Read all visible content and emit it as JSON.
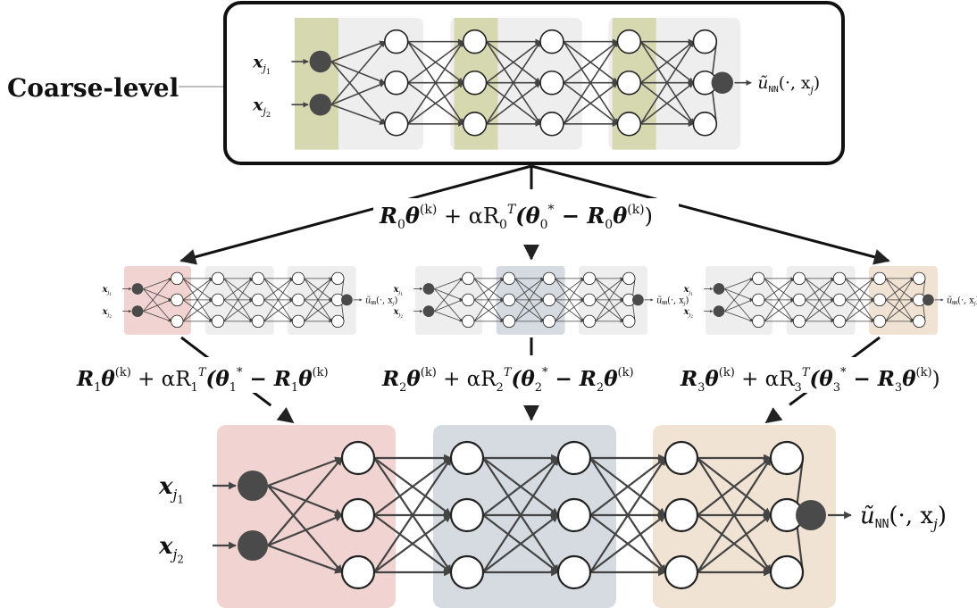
{
  "coarse_label": "Coarse-level",
  "input_labels": {
    "x1_base": "x",
    "x1_sub": "j",
    "x1_subsub": "1",
    "x2_base": "x",
    "x2_sub": "j",
    "x2_subsub": "2"
  },
  "output_label": {
    "u": "ũ",
    "nn": "NN",
    "args": "(·, x",
    "args_sub": "j",
    "close": ")"
  },
  "formulas": {
    "top": {
      "prefix": "R",
      "sub": "0",
      "text": "θ",
      "sup": "(k)",
      "mid": " + αR",
      "mid_sub": "0",
      "mid_sup": "T",
      "paren": "(θ",
      "paren_sub": "0",
      "paren_sup": "*",
      "minus": " − R",
      "minus_sub": "0",
      "end": "θ",
      "end_sup": "(k)",
      "close": ")"
    },
    "f1": {
      "prefix": "R",
      "sub": "1",
      "text": "θ",
      "sup": "(k)",
      "mid": " + αR",
      "mid_sub": "1",
      "mid_sup": "T",
      "paren": "(θ",
      "paren_sub": "1",
      "paren_sup": "*",
      "minus": " − R",
      "minus_sub": "1",
      "end": "θ",
      "end_sup": "(k)",
      "close": ""
    },
    "f2": {
      "prefix": "R",
      "sub": "2",
      "text": "θ",
      "sup": "(k)",
      "mid": " + αR",
      "mid_sub": "2",
      "mid_sup": "T",
      "paren": "(θ",
      "paren_sub": "2",
      "paren_sup": "*",
      "minus": " − R",
      "minus_sub": "2",
      "end": "θ",
      "end_sup": "(k)",
      "close": ""
    },
    "f3": {
      "prefix": "R",
      "sub": "3",
      "text": "θ",
      "sup": "(k)",
      "mid": " + αR",
      "mid_sub": "3",
      "mid_sup": "T",
      "paren": "(θ",
      "paren_sub": "3",
      "paren_sup": "*",
      "minus": " − R",
      "minus_sub": "3",
      "end": "θ",
      "end_sup": "(k)",
      "close": ")"
    }
  },
  "colors": {
    "coarse_highlight": "#d6d8b0",
    "block_gray": "#eeeeee",
    "subdomain_1": "#f1d3d1",
    "subdomain_2": "#d6dbe1",
    "subdomain_3": "#f1e3d3",
    "node_fill": "#4a4a4a",
    "edge": "#444444"
  }
}
